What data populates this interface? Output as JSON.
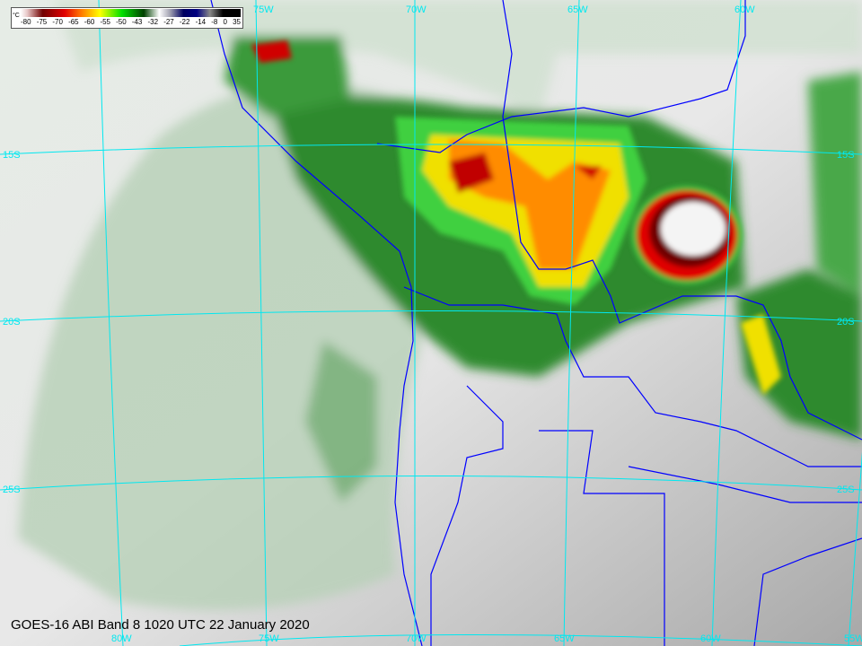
{
  "caption": "GOES-16 ABI Band 8 1020 UTC 22 January 2020",
  "colorbar": {
    "unit": "°C",
    "ticks": [
      "-80",
      "-75",
      "-70",
      "-65",
      "-60",
      "-55",
      "-50",
      "-43",
      "-32",
      "-27",
      "-22",
      "-14",
      "-8",
      "0",
      "35"
    ]
  },
  "grid": {
    "bottom_lon_labels": [
      "80W",
      "75W",
      "70W",
      "65W",
      "60W",
      "55W"
    ],
    "top_lon_labels": [
      "75W",
      "70W",
      "65W",
      "60W"
    ],
    "left_lat_labels": [
      "15S",
      "20S",
      "25S"
    ],
    "right_lat_labels": [
      "15S",
      "20S",
      "25S"
    ]
  },
  "colors": {
    "grid": "#00e8f0",
    "borders": "#0000ff"
  }
}
